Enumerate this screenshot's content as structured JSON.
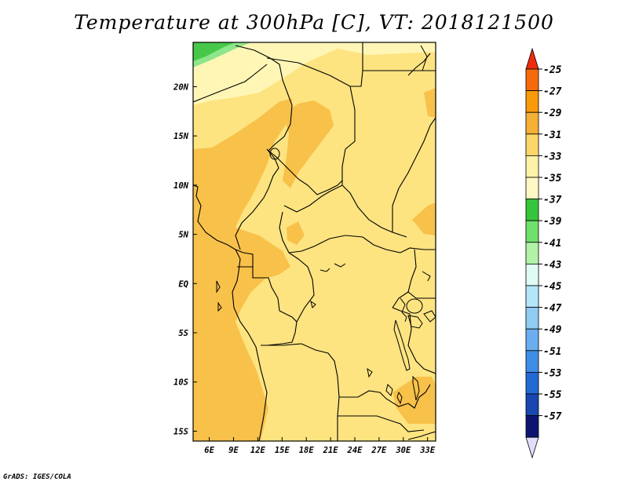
{
  "title": "Temperature at 300hPa [C], VT: 2018121500",
  "credit": "GrADS: IGES/COLA",
  "map": {
    "lon_range": [
      4,
      34
    ],
    "lat_range": [
      -16,
      24.5
    ],
    "lon_ticks": [
      {
        "value": 6,
        "label": "6E"
      },
      {
        "value": 9,
        "label": "9E"
      },
      {
        "value": 12,
        "label": "12E"
      },
      {
        "value": 15,
        "label": "15E"
      },
      {
        "value": 18,
        "label": "18E"
      },
      {
        "value": 21,
        "label": "21E"
      },
      {
        "value": 24,
        "label": "24E"
      },
      {
        "value": 27,
        "label": "27E"
      },
      {
        "value": 30,
        "label": "30E"
      },
      {
        "value": 33,
        "label": "33E"
      }
    ],
    "lat_ticks": [
      {
        "value": 20,
        "label": "20N"
      },
      {
        "value": 15,
        "label": "15N"
      },
      {
        "value": 10,
        "label": "10N"
      },
      {
        "value": 5,
        "label": "5N"
      },
      {
        "value": 0,
        "label": "EQ"
      },
      {
        "value": -5,
        "label": "5S"
      },
      {
        "value": -10,
        "label": "10S"
      },
      {
        "value": -15,
        "label": "15S"
      }
    ]
  },
  "colorbar": {
    "top_arrow_color": "#ee2c0c",
    "bottom_arrow_color": "#e1dcfa",
    "bins": [
      {
        "color": "#f76a0c",
        "label": "-25"
      },
      {
        "color": "#f99a0a",
        "label": "-27"
      },
      {
        "color": "#f5b036",
        "label": "-29"
      },
      {
        "color": "#fbd76a",
        "label": "-31"
      },
      {
        "color": "#fdf2a8",
        "label": "-33"
      },
      {
        "color": "#fff8c4",
        "label": "-35"
      },
      {
        "color": "#35c43b",
        "label": "-37"
      },
      {
        "color": "#6fe06c",
        "label": "-39"
      },
      {
        "color": "#b1f2a7",
        "label": "-41"
      },
      {
        "color": "#e0fbf4",
        "label": "-43"
      },
      {
        "color": "#b4e6fa",
        "label": "-45"
      },
      {
        "color": "#8fccf4",
        "label": "-47"
      },
      {
        "color": "#6aaef0",
        "label": "-49"
      },
      {
        "color": "#3f8ee6",
        "label": "-51"
      },
      {
        "color": "#2369d4",
        "label": "-53"
      },
      {
        "color": "#1847b0",
        "label": "-55"
      },
      {
        "color": "#0b1570",
        "label": "-57"
      }
    ]
  },
  "fields": {
    "land_fill": "#fde481",
    "warm_fill": "#f8c14a",
    "cool_fill": "#fff6b6",
    "green_fill": "#48c84a",
    "lightgreen_fill": "#8ee68a"
  }
}
